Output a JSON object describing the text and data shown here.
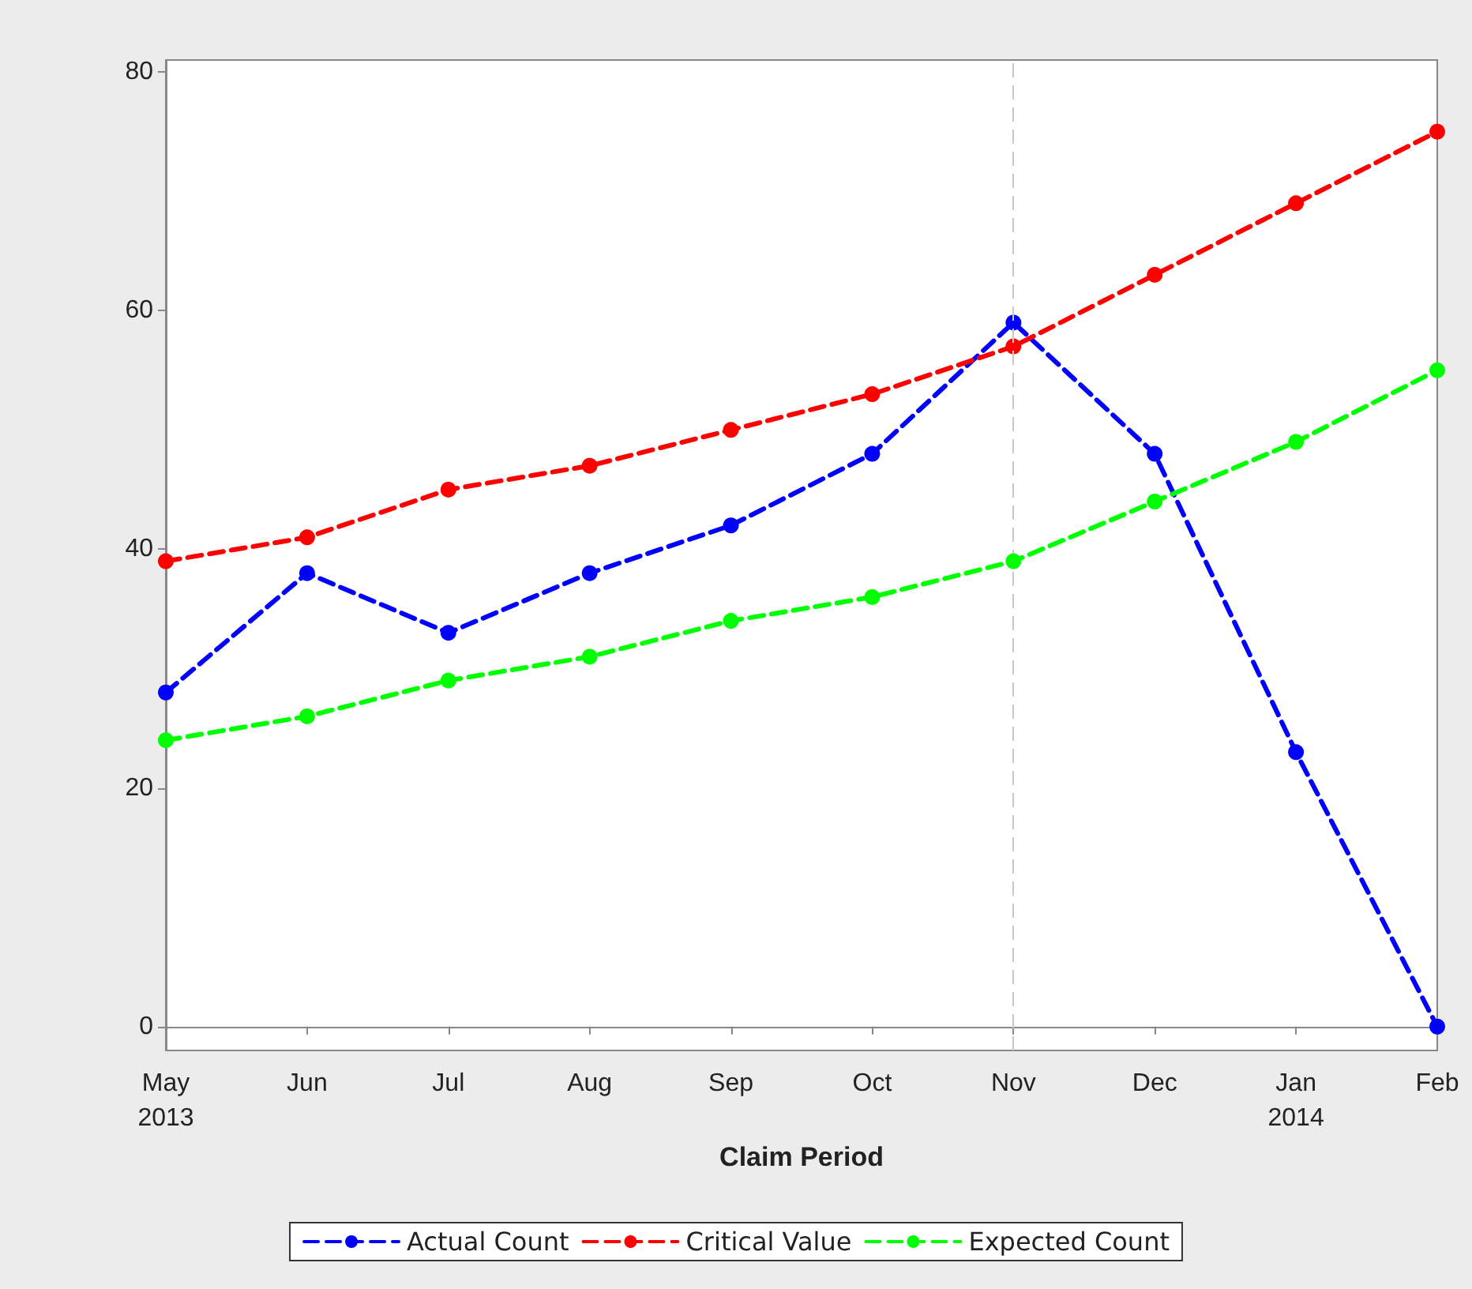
{
  "chart_data": {
    "type": "line",
    "xlabel": "Claim Period",
    "categories": [
      "May\n2013",
      "Jun",
      "Jul",
      "Aug",
      "Sep",
      "Oct",
      "Nov",
      "Dec",
      "Jan\n2014",
      "Feb"
    ],
    "series": [
      {
        "name": "Actual Count",
        "color": "#0000ff",
        "values": [
          28,
          38,
          33,
          38,
          42,
          48,
          59,
          48,
          23,
          0
        ]
      },
      {
        "name": "Critical Value",
        "color": "#ff0000",
        "values": [
          39,
          41,
          45,
          47,
          50,
          53,
          57,
          63,
          69,
          75
        ]
      },
      {
        "name": "Expected Count",
        "color": "#00ff00",
        "values": [
          24,
          26,
          29,
          31,
          34,
          36,
          39,
          44,
          49,
          55
        ]
      }
    ],
    "ylim": [
      -2,
      81
    ],
    "yticks": [
      0,
      20,
      40,
      60,
      80
    ],
    "ref_lines": [
      {
        "axis": "x",
        "value": "Nov",
        "color": "#c8c8c8",
        "line_style": "dashed"
      }
    ],
    "marker": "circle",
    "line_style": "dashed",
    "grid": false,
    "legend": "bottom"
  }
}
